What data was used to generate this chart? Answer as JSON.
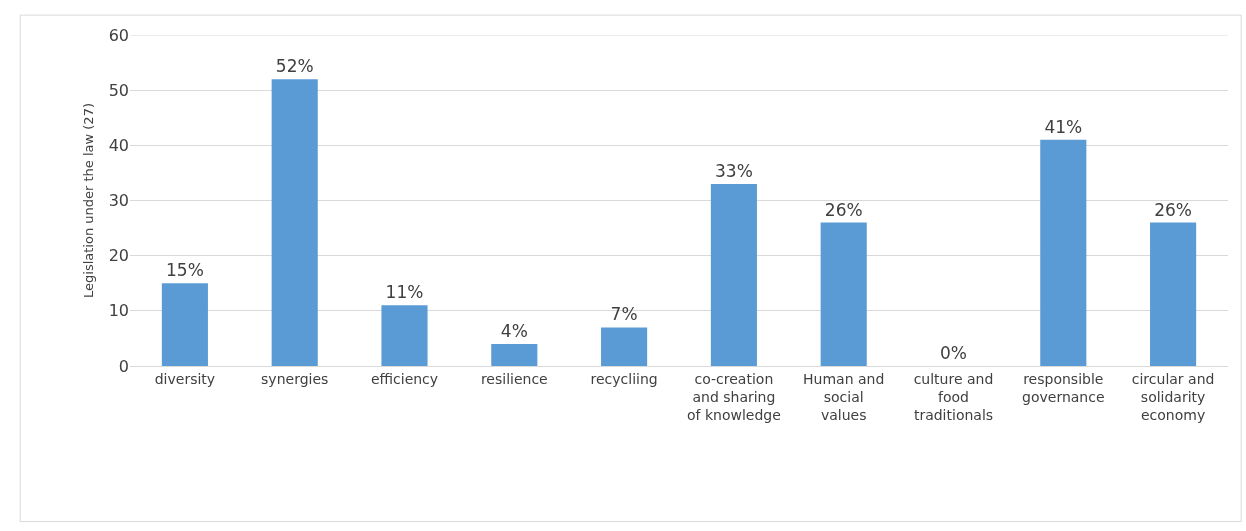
{
  "chart_data": {
    "type": "bar",
    "ylabel": "Legislation under the law (27)",
    "categories": [
      "diversity",
      "synergies",
      "efficiency",
      "resilience",
      "recycliing",
      "co-creation and sharing of knowledge",
      "Human and social values",
      "culture and food traditionals",
      "responsible governance",
      "circular and solidarity economy"
    ],
    "values": [
      15,
      52,
      11,
      4,
      7,
      33,
      26,
      0,
      41,
      26
    ],
    "value_labels": [
      "15%",
      "52%",
      "11%",
      "4%",
      "7%",
      "33%",
      "26%",
      "0%",
      "41%",
      "26%"
    ],
    "color": "#5b9bd5",
    "ylim": [
      0,
      60
    ],
    "yticks": [
      0,
      10,
      20,
      30,
      40,
      50,
      60
    ],
    "grid": "y",
    "legend": false
  }
}
